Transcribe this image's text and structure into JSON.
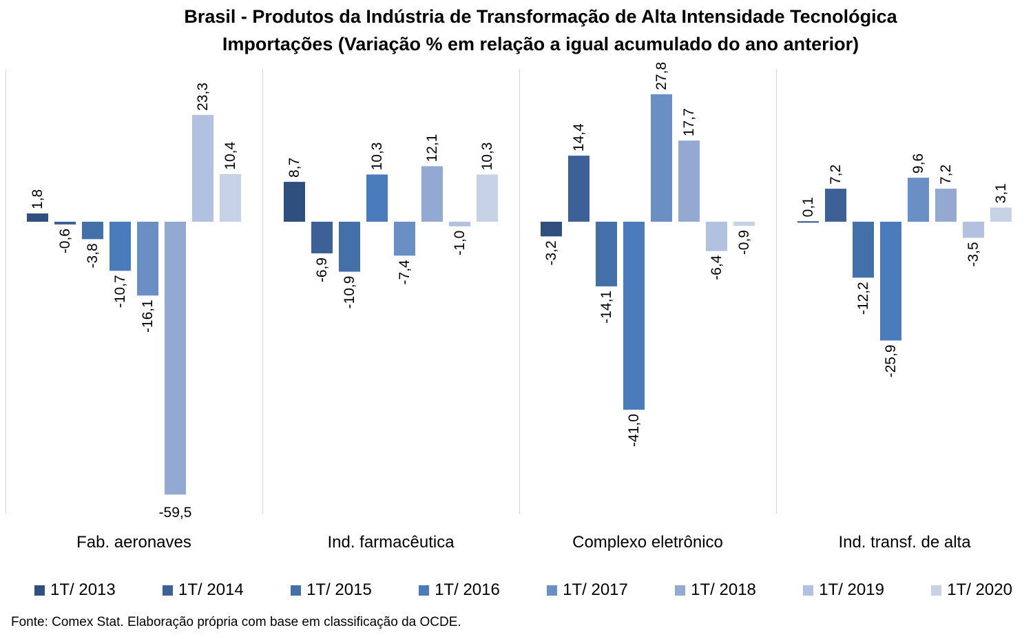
{
  "chart_data": {
    "type": "bar",
    "title": "Brasil - Produtos da Indústria de Transformação de Alta Intensidade Tecnológica",
    "subtitle": "Importações (Variação % em relação a igual acumulado do ano anterior)",
    "categories": [
      "Fab. aeronaves",
      "Ind. farmacêutica",
      "Complexo eletrônico",
      "Ind. transf. de alta"
    ],
    "series": [
      {
        "name": "1T/ 2013",
        "color": "#2f4f7f",
        "values": [
          1.8,
          8.7,
          -3.2,
          0.1
        ],
        "labels": [
          "1,8",
          "8,7",
          "-3,2",
          "0,1"
        ]
      },
      {
        "name": "1T/ 2014",
        "color": "#3d6096",
        "values": [
          -0.6,
          -6.9,
          14.4,
          7.2
        ],
        "labels": [
          "-0,6",
          "-6,9",
          "14,4",
          "7,2"
        ]
      },
      {
        "name": "1T/ 2015",
        "color": "#4370a8",
        "values": [
          -3.8,
          -10.9,
          -14.1,
          -12.2
        ],
        "labels": [
          "-3,8",
          "-10,9",
          "-14,1",
          "-12,2"
        ]
      },
      {
        "name": "1T/ 2016",
        "color": "#4a7cbc",
        "values": [
          -10.7,
          10.3,
          -41.0,
          -25.9
        ],
        "labels": [
          "-10,7",
          "10,3",
          "-41,0",
          "-25,9"
        ]
      },
      {
        "name": "1T/ 2017",
        "color": "#6a8fc5",
        "values": [
          -16.1,
          -7.4,
          27.8,
          9.6
        ],
        "labels": [
          "-16,1",
          "-7,4",
          "27,8",
          "9,6"
        ]
      },
      {
        "name": "1T/ 2018",
        "color": "#94a9d2",
        "values": [
          -59.5,
          12.1,
          17.7,
          7.2
        ],
        "labels": [
          "-59,5",
          "12,1",
          "17,7",
          "7,2"
        ]
      },
      {
        "name": "1T/ 2019",
        "color": "#b1c1df",
        "values": [
          23.3,
          -1.0,
          -6.4,
          -3.5
        ],
        "labels": [
          "23,3",
          "-1,0",
          "-6,4",
          "-3,5"
        ]
      },
      {
        "name": "1T/ 2020",
        "color": "#c8d2e6",
        "values": [
          10.4,
          10.3,
          -0.9,
          3.1
        ],
        "labels": [
          "10,4",
          "10,3",
          "-0,9",
          "3,1"
        ]
      }
    ],
    "ylim": [
      -63.5,
      28.9
    ],
    "grid": false,
    "legend_position": "bottom",
    "source": "Fonte: Comex Stat. Elaboração própria com base em classificação da OCDE."
  }
}
